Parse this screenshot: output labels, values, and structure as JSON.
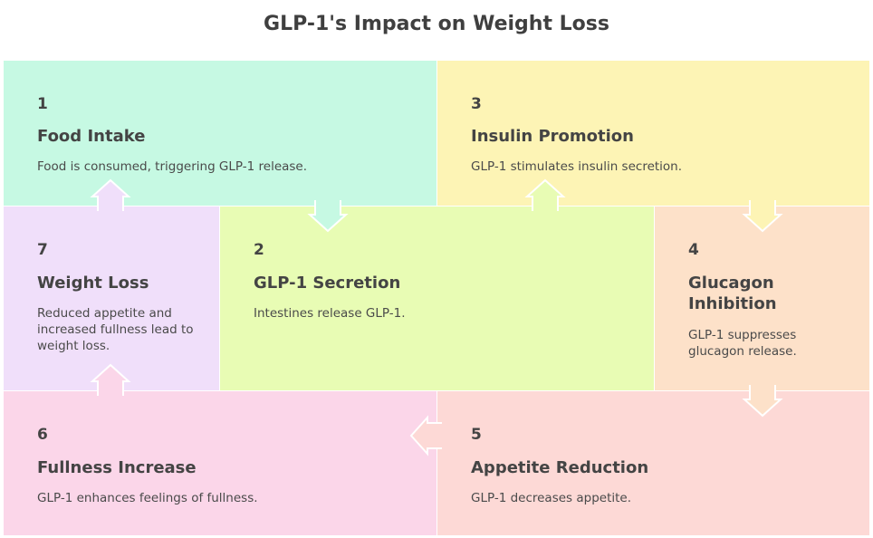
{
  "title": "GLP-1's Impact on Weight Loss",
  "steps": [
    {
      "num": "1",
      "title": "Food Intake",
      "desc": "Food is consumed, triggering GLP-1 release.",
      "color": "#c6f9e3"
    },
    {
      "num": "2",
      "title": "GLP-1 Secretion",
      "desc": "Intestines release GLP-1.",
      "color": "#e8fcb4"
    },
    {
      "num": "3",
      "title": "Insulin Promotion",
      "desc": "GLP-1 stimulates insulin secretion.",
      "color": "#fdf4b5"
    },
    {
      "num": "4",
      "title": "Glucagon Inhibition",
      "desc": "GLP-1 suppresses glucagon release.",
      "color": "#fde1c9"
    },
    {
      "num": "5",
      "title": "Appetite Reduction",
      "desc": "GLP-1 decreases appetite.",
      "color": "#fdd9d6"
    },
    {
      "num": "6",
      "title": "Fullness Increase",
      "desc": "GLP-1 enhances feelings of fullness.",
      "color": "#fbd6e9"
    },
    {
      "num": "7",
      "title": "Weight Loss",
      "desc": "Reduced appetite and increased fullness lead to weight loss.",
      "color": "#f0dffa"
    }
  ]
}
